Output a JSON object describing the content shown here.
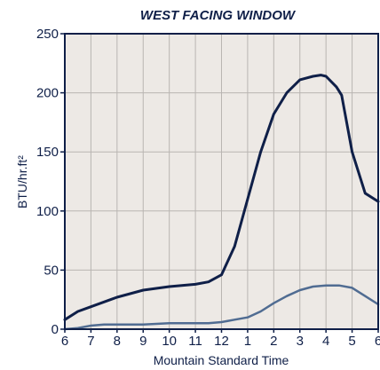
{
  "chart_data": {
    "type": "line",
    "title": "WEST FACING WINDOW",
    "xlabel": "Mountain Standard Time",
    "ylabel": "BTU/hr.ft²",
    "ylim": [
      0,
      250
    ],
    "yticks": [
      0,
      50,
      100,
      150,
      200,
      250
    ],
    "xticks": [
      "6",
      "7",
      "8",
      "9",
      "10",
      "11",
      "12",
      "1",
      "2",
      "3",
      "4",
      "5",
      "6"
    ],
    "grid": true,
    "series": [
      {
        "color": "#0f1f48",
        "x": [
          0,
          0.5,
          1,
          2,
          3,
          4,
          5,
          5.5,
          6,
          6.5,
          7,
          7.5,
          8,
          8.5,
          9,
          9.5,
          9.8,
          10,
          10.4,
          10.6,
          11,
          11.5,
          12
        ],
        "values": [
          8,
          15,
          19,
          27,
          33,
          36,
          38,
          40,
          46,
          70,
          110,
          150,
          182,
          200,
          211,
          214,
          215,
          214,
          205,
          198,
          150,
          115,
          108
        ]
      },
      {
        "color": "#506c92",
        "x": [
          0,
          0.5,
          1,
          1.5,
          2,
          3,
          4,
          5,
          5.5,
          6,
          6.5,
          7,
          7.5,
          8,
          8.5,
          9,
          9.5,
          10,
          10.5,
          11,
          11.5,
          12
        ],
        "values": [
          0,
          1,
          3,
          4,
          4,
          4,
          5,
          5,
          5,
          6,
          8,
          10,
          15,
          22,
          28,
          33,
          36,
          37,
          37,
          35,
          28,
          21
        ]
      }
    ]
  },
  "colors": {
    "plot_background": "#ede9e5",
    "grid": "#b9b5b2",
    "axis": "#0f1f48",
    "text": "#0f1f48"
  }
}
